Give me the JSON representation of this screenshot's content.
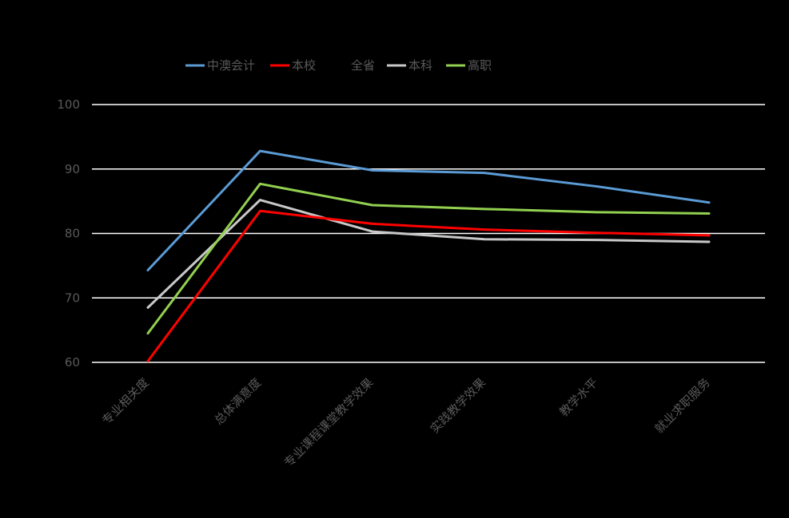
{
  "chart_data": {
    "type": "line",
    "title": "",
    "xlabel": "",
    "ylabel": "",
    "categories": [
      "专业相关度",
      "总体满意度",
      "专业课程课堂教学效果",
      "实践教学效果",
      "教学水平",
      "就业求职服务"
    ],
    "ylim": [
      60,
      100
    ],
    "yticks": [
      "60",
      "70",
      "80",
      "90",
      "100"
    ],
    "ytick_values": [
      60,
      70,
      80,
      90,
      100
    ],
    "grid": true,
    "legend_position": "top",
    "series": [
      {
        "name": "中澳会计",
        "color": "#5b9bd5",
        "values": [
          74.3,
          92.8,
          89.8,
          89.4,
          87.3,
          84.8
        ]
      },
      {
        "name": "本校",
        "color": "#ff0000",
        "values": [
          60.2,
          83.5,
          81.5,
          80.6,
          80.1,
          79.7
        ]
      },
      {
        "name": "全省",
        "color": "#000000",
        "values": [
          null,
          null,
          null,
          null,
          null,
          null
        ]
      },
      {
        "name": "本科",
        "color": "#c8c8c8",
        "values": [
          68.5,
          85.2,
          80.3,
          79.1,
          79.0,
          78.7
        ]
      },
      {
        "name": "高职",
        "color": "#92d050",
        "values": [
          64.5,
          87.7,
          84.4,
          83.8,
          83.3,
          83.1
        ]
      }
    ]
  }
}
